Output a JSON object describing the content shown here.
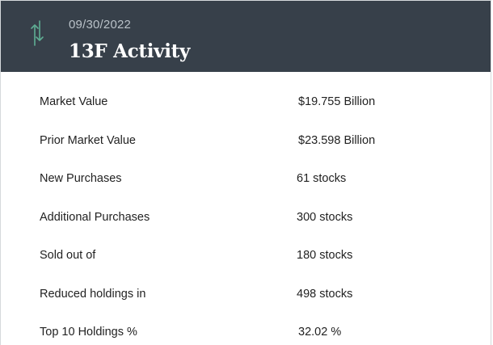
{
  "header": {
    "date": "09/30/2022",
    "title": "13F Activity",
    "icon": "up-down-arrows-icon",
    "icon_color": "#5fae94"
  },
  "rows": [
    {
      "label": "Market Value",
      "value": "$19.755 Billion"
    },
    {
      "label": "Prior Market Value",
      "value": "$23.598 Billion"
    },
    {
      "label": "New Purchases",
      "value": "61 stocks"
    },
    {
      "label": "Additional Purchases",
      "value": "300 stocks"
    },
    {
      "label": "Sold out of",
      "value": "180 stocks"
    },
    {
      "label": "Reduced holdings in",
      "value": "498 stocks"
    },
    {
      "label": "Top 10 Holdings %",
      "value": "32.02 %"
    }
  ]
}
